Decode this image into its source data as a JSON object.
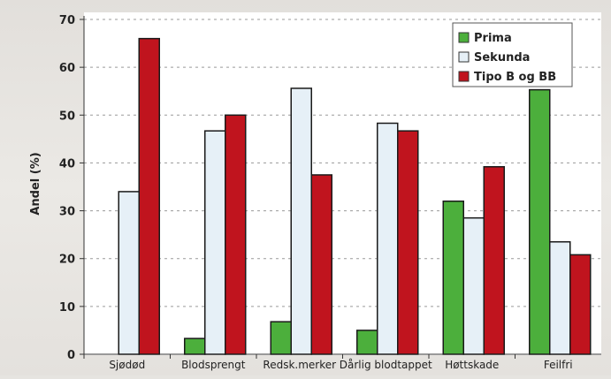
{
  "chart_data": {
    "type": "bar",
    "ylabel": "Andel (%)",
    "xlabel": "",
    "ylim": [
      0,
      70
    ],
    "yticks": [
      0,
      10,
      20,
      30,
      40,
      50,
      60,
      70
    ],
    "grid": "horizontal dashed",
    "legend_position": "top-right",
    "categories": [
      "Sjødød",
      "Blodsprengt",
      "Redsk.merker",
      "Dårlig blodtappet",
      "Høttskade",
      "Feilfri"
    ],
    "series": [
      {
        "name": "Prima",
        "color": "#4caf3c",
        "values": [
          0,
          3.3,
          6.8,
          5,
          32,
          55.3
        ]
      },
      {
        "name": "Sekunda",
        "color": "#e6f0f7",
        "values": [
          34,
          46.7,
          55.6,
          48.3,
          28.5,
          23.5
        ]
      },
      {
        "name": "Tipo B og BB",
        "color": "#c0141e",
        "values": [
          66,
          50,
          37.5,
          46.7,
          39.2,
          20.8
        ]
      }
    ]
  }
}
